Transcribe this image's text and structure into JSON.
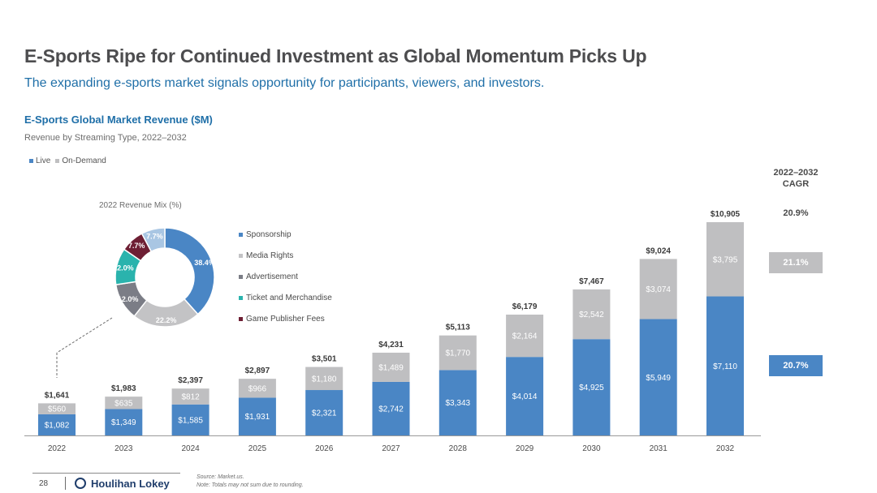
{
  "page": {
    "title": "E-Sports Ripe for Continued Investment as Global Momentum Picks Up",
    "subtitle": "The expanding e-sports market signals opportunity for participants, viewers, and investors."
  },
  "colors": {
    "live": "#4a86c5",
    "on_demand": "#bfbfc1",
    "title_blue": "#1f6fa8"
  },
  "chart_data": [
    {
      "type": "bar",
      "stacked": true,
      "title": "E-Sports Global Market Revenue ($M)",
      "subtitle": "Revenue by Streaming Type, 2022–2032",
      "legend": [
        "Live",
        "On-Demand"
      ],
      "legend_position": "top-left",
      "categories": [
        "2022",
        "2023",
        "2024",
        "2025",
        "2026",
        "2027",
        "2028",
        "2029",
        "2030",
        "2031",
        "2032"
      ],
      "series": [
        {
          "name": "Live",
          "color": "#4a86c5",
          "values": [
            1082,
            1349,
            1585,
            1931,
            2321,
            2742,
            3343,
            4014,
            4925,
            5949,
            7110
          ],
          "labels": [
            "$1,082",
            "$1,349",
            "$1,585",
            "$1,931",
            "$2,321",
            "$2,742",
            "$3,343",
            "$4,014",
            "$4,925",
            "$5,949",
            "$7,110"
          ]
        },
        {
          "name": "On-Demand",
          "color": "#bfbfc1",
          "values": [
            560,
            635,
            812,
            966,
            1180,
            1489,
            1770,
            2164,
            2542,
            3074,
            3795
          ],
          "labels": [
            "$560",
            "$635",
            "$812",
            "$966",
            "$1,180",
            "$1,489",
            "$1,770",
            "$2,164",
            "$2,542",
            "$3,074",
            "$3,795"
          ]
        }
      ],
      "totals": [
        1641,
        1983,
        2397,
        2897,
        3501,
        4231,
        5113,
        6179,
        7467,
        9024,
        10905
      ],
      "total_labels": [
        "$1,641",
        "$1,983",
        "$2,397",
        "$2,897",
        "$3,501",
        "$4,231",
        "$5,113",
        "$6,179",
        "$7,467",
        "$9,024",
        "$10,905"
      ],
      "ylim": [
        0,
        11000
      ],
      "grid": false,
      "cagr": {
        "header": "2022–2032 CAGR",
        "total": "20.9%",
        "on_demand": "21.1%",
        "live": "20.7%"
      }
    },
    {
      "type": "pie",
      "donut": true,
      "title": "2022 Revenue Mix (%)",
      "categories": [
        "Sponsorship",
        "Media Rights",
        "Advertisement",
        "Ticket and Merchandise",
        "Game Publisher Fees",
        "Other"
      ],
      "values": [
        38.4,
        22.2,
        12.0,
        12.0,
        7.7,
        7.7
      ],
      "labels": [
        "38.4%",
        "22.2%",
        "12.0%",
        "12.0%",
        "7.7%",
        "7.7%"
      ],
      "colors": [
        "#4a86c5",
        "#c3c3c5",
        "#7b7d86",
        "#2ab3ad",
        "#6e1f34",
        "#a9c6e3"
      ],
      "legend_labels": [
        "Sponsorship",
        "Media Rights",
        "Advertisement",
        "Ticket and Merchandise",
        "Game Publisher Fees"
      ]
    }
  ],
  "footer": {
    "page_number": "28",
    "brand": "Houlihan Lokey",
    "source": "Source: Market.us.",
    "note": "Note: Totals may not sum due to rounding."
  }
}
